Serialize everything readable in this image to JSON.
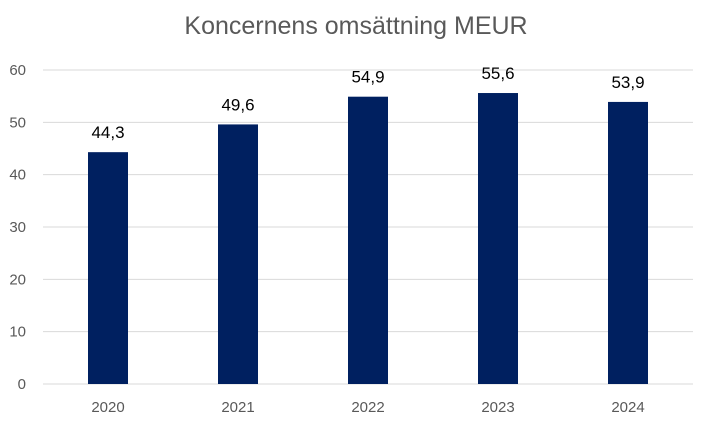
{
  "chart_data": {
    "type": "bar",
    "title": "Koncernens omsättning MEUR",
    "categories": [
      "2020",
      "2021",
      "2022",
      "2023",
      "2024"
    ],
    "values": [
      44.3,
      49.6,
      54.9,
      55.6,
      53.9
    ],
    "data_labels": [
      "44,3",
      "49,6",
      "54,9",
      "55,6",
      "53,9"
    ],
    "yticks": [
      "0",
      "10",
      "20",
      "30",
      "40",
      "50",
      "60"
    ],
    "ylim": [
      0,
      60
    ],
    "xlabel": "",
    "ylabel": "",
    "grid": true,
    "legend": "none",
    "bar_color": "#002060",
    "grid_color": "#d9d9d9"
  }
}
